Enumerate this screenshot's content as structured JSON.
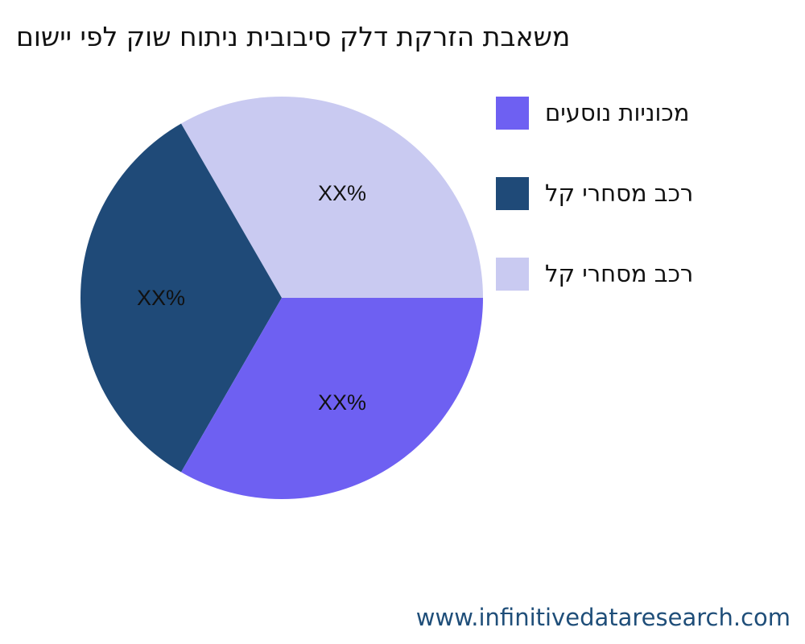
{
  "chart_data": {
    "type": "pie",
    "title": "םושיי יפל קוש חותינ תיבוביס קלד תקרזה תבאשמ",
    "slices": [
      {
        "label": "םיעסונ תוינוכמ",
        "value": 33.33,
        "data_label": "XX%",
        "color": "#6e60f2"
      },
      {
        "label": "לק ירחסמ בכר",
        "value": 33.33,
        "data_label": "XX%",
        "color": "#1f4a78"
      },
      {
        "label": "לק ירחסמ בכר",
        "value": 33.33,
        "data_label": "XX%",
        "color": "#c9caf1"
      }
    ],
    "legend_position": "right"
  },
  "watermark": "www.infinitivedataresearch.com"
}
